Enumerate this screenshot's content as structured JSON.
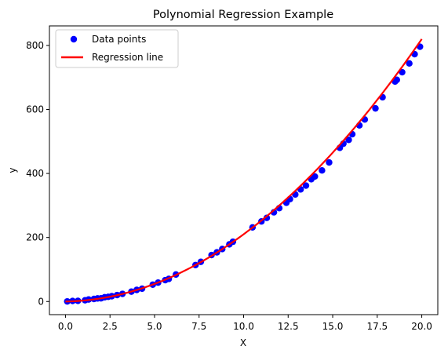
{
  "chart_data": {
    "type": "scatter",
    "title": "Polynomial Regression Example",
    "xlabel": "X",
    "ylabel": "y",
    "xlim": [
      -0.9,
      20.9
    ],
    "ylim": [
      -41,
      861
    ],
    "xticks": [
      0.0,
      2.5,
      5.0,
      7.5,
      10.0,
      12.5,
      15.0,
      17.5,
      20.0
    ],
    "xtick_labels": [
      "0.0",
      "2.5",
      "5.0",
      "7.5",
      "10.0",
      "12.5",
      "15.0",
      "17.5",
      "20.0"
    ],
    "yticks": [
      0,
      200,
      400,
      600,
      800
    ],
    "ytick_labels": [
      "0",
      "200",
      "400",
      "600",
      "800"
    ],
    "grid": false,
    "legend_position": "top-left",
    "series": [
      {
        "name": "Data points",
        "kind": "scatter",
        "color": "#0000ff",
        "x": [
          0.1,
          0.4,
          0.7,
          1.1,
          1.3,
          1.6,
          1.8,
          2.0,
          2.2,
          2.4,
          2.6,
          2.9,
          3.2,
          3.7,
          4.0,
          4.3,
          4.9,
          5.2,
          5.6,
          5.8,
          6.2,
          7.3,
          7.6,
          8.2,
          8.5,
          8.8,
          9.2,
          9.4,
          10.5,
          11.0,
          11.3,
          11.7,
          12.0,
          12.4,
          12.6,
          12.9,
          13.2,
          13.5,
          13.8,
          14.0,
          14.4,
          14.8,
          15.4,
          15.6,
          15.9,
          16.1,
          16.5,
          16.8,
          17.4,
          17.8,
          18.5,
          18.6,
          18.9,
          19.3,
          19.6,
          19.9
        ],
        "y": [
          0.3,
          1.7,
          2.0,
          3.9,
          6.3,
          8.0,
          9.6,
          10.0,
          13.3,
          14.6,
          16.6,
          20.2,
          23.9,
          30.8,
          36.2,
          40.1,
          52.7,
          59.0,
          66.8,
          70.6,
          84.3,
          114.0,
          124.0,
          145.2,
          153.6,
          164.0,
          178.6,
          186.7,
          231.6,
          250.1,
          261.2,
          278.6,
          291.7,
          308.5,
          320.0,
          334.4,
          350.3,
          362.0,
          382.0,
          390.6,
          409.5,
          434.3,
          480.0,
          493.0,
          505.0,
          522.6,
          550.2,
          568.5,
          603.3,
          638.2,
          687.2,
          692.5,
          716.3,
          743.8,
          772.6,
          796.0
        ]
      },
      {
        "name": "Regression line",
        "kind": "line",
        "color": "#ff0000",
        "coefficients": [
          0.0,
          1.0,
          2.0
        ],
        "x_range": [
          0.0,
          20.0
        ]
      }
    ]
  }
}
